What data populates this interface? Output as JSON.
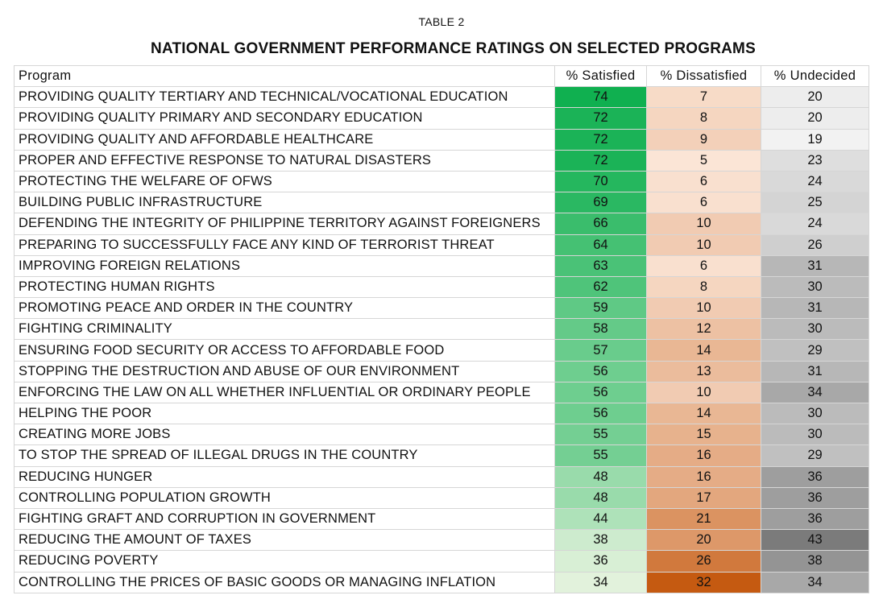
{
  "table_label": "TABLE 2",
  "title": "NATIONAL GOVERNMENT PERFORMANCE RATINGS ON SELECTED PROGRAMS",
  "columns": [
    "Program",
    "% Satisfied",
    "% Dissatisfied",
    "% Undecided"
  ],
  "rows": [
    {
      "program": "PROVIDING QUALITY TERTIARY AND TECHNICAL/VOCATIONAL EDUCATION",
      "satisfied": 74,
      "dissatisfied": 7,
      "undecided": 20
    },
    {
      "program": "PROVIDING QUALITY PRIMARY AND SECONDARY EDUCATION",
      "satisfied": 72,
      "dissatisfied": 8,
      "undecided": 20
    },
    {
      "program": "PROVIDING QUALITY AND AFFORDABLE HEALTHCARE",
      "satisfied": 72,
      "dissatisfied": 9,
      "undecided": 19
    },
    {
      "program": "PROPER AND EFFECTIVE RESPONSE TO NATURAL DISASTERS",
      "satisfied": 72,
      "dissatisfied": 5,
      "undecided": 23
    },
    {
      "program": "PROTECTING THE WELFARE OF OFWS",
      "satisfied": 70,
      "dissatisfied": 6,
      "undecided": 24
    },
    {
      "program": "BUILDING PUBLIC INFRASTRUCTURE",
      "satisfied": 69,
      "dissatisfied": 6,
      "undecided": 25
    },
    {
      "program": "DEFENDING THE INTEGRITY OF PHILIPPINE TERRITORY AGAINST FOREIGNERS",
      "satisfied": 66,
      "dissatisfied": 10,
      "undecided": 24
    },
    {
      "program": "PREPARING TO SUCCESSFULLY FACE ANY KIND OF TERRORIST THREAT",
      "satisfied": 64,
      "dissatisfied": 10,
      "undecided": 26
    },
    {
      "program": "IMPROVING FOREIGN RELATIONS",
      "satisfied": 63,
      "dissatisfied": 6,
      "undecided": 31
    },
    {
      "program": "PROTECTING HUMAN RIGHTS",
      "satisfied": 62,
      "dissatisfied": 8,
      "undecided": 30
    },
    {
      "program": "PROMOTING PEACE AND ORDER IN THE COUNTRY",
      "satisfied": 59,
      "dissatisfied": 10,
      "undecided": 31
    },
    {
      "program": "FIGHTING CRIMINALITY",
      "satisfied": 58,
      "dissatisfied": 12,
      "undecided": 30
    },
    {
      "program": "ENSURING FOOD SECURITY OR ACCESS TO AFFORDABLE FOOD",
      "satisfied": 57,
      "dissatisfied": 14,
      "undecided": 29
    },
    {
      "program": "STOPPING THE DESTRUCTION AND ABUSE OF OUR ENVIRONMENT",
      "satisfied": 56,
      "dissatisfied": 13,
      "undecided": 31
    },
    {
      "program": "ENFORCING THE LAW ON ALL WHETHER INFLUENTIAL OR ORDINARY PEOPLE",
      "satisfied": 56,
      "dissatisfied": 10,
      "undecided": 34
    },
    {
      "program": "HELPING THE POOR",
      "satisfied": 56,
      "dissatisfied": 14,
      "undecided": 30
    },
    {
      "program": "CREATING MORE JOBS",
      "satisfied": 55,
      "dissatisfied": 15,
      "undecided": 30
    },
    {
      "program": "TO STOP THE SPREAD OF ILLEGAL DRUGS IN THE COUNTRY",
      "satisfied": 55,
      "dissatisfied": 16,
      "undecided": 29
    },
    {
      "program": "REDUCING HUNGER",
      "satisfied": 48,
      "dissatisfied": 16,
      "undecided": 36
    },
    {
      "program": "CONTROLLING POPULATION GROWTH",
      "satisfied": 48,
      "dissatisfied": 17,
      "undecided": 36
    },
    {
      "program": "FIGHTING GRAFT AND CORRUPTION IN GOVERNMENT",
      "satisfied": 44,
      "dissatisfied": 21,
      "undecided": 36
    },
    {
      "program": "REDUCING THE AMOUNT OF TAXES",
      "satisfied": 38,
      "dissatisfied": 20,
      "undecided": 43
    },
    {
      "program": "REDUCING POVERTY",
      "satisfied": 36,
      "dissatisfied": 26,
      "undecided": 38
    },
    {
      "program": "CONTROLLING THE PRICES OF BASIC GOODS OR MANAGING INFLATION",
      "satisfied": 34,
      "dissatisfied": 32,
      "undecided": 34
    }
  ],
  "colors": {
    "satisfied_high": "#10b050",
    "satisfied_low": "#e2f2dc",
    "dissatisfied_high": "#c55a11",
    "dissatisfied_low": "#fbe5d6",
    "undecided_high": "#7b7b7b",
    "undecided_low": "#f2f2f2",
    "grid": "#d6d6d6"
  }
}
